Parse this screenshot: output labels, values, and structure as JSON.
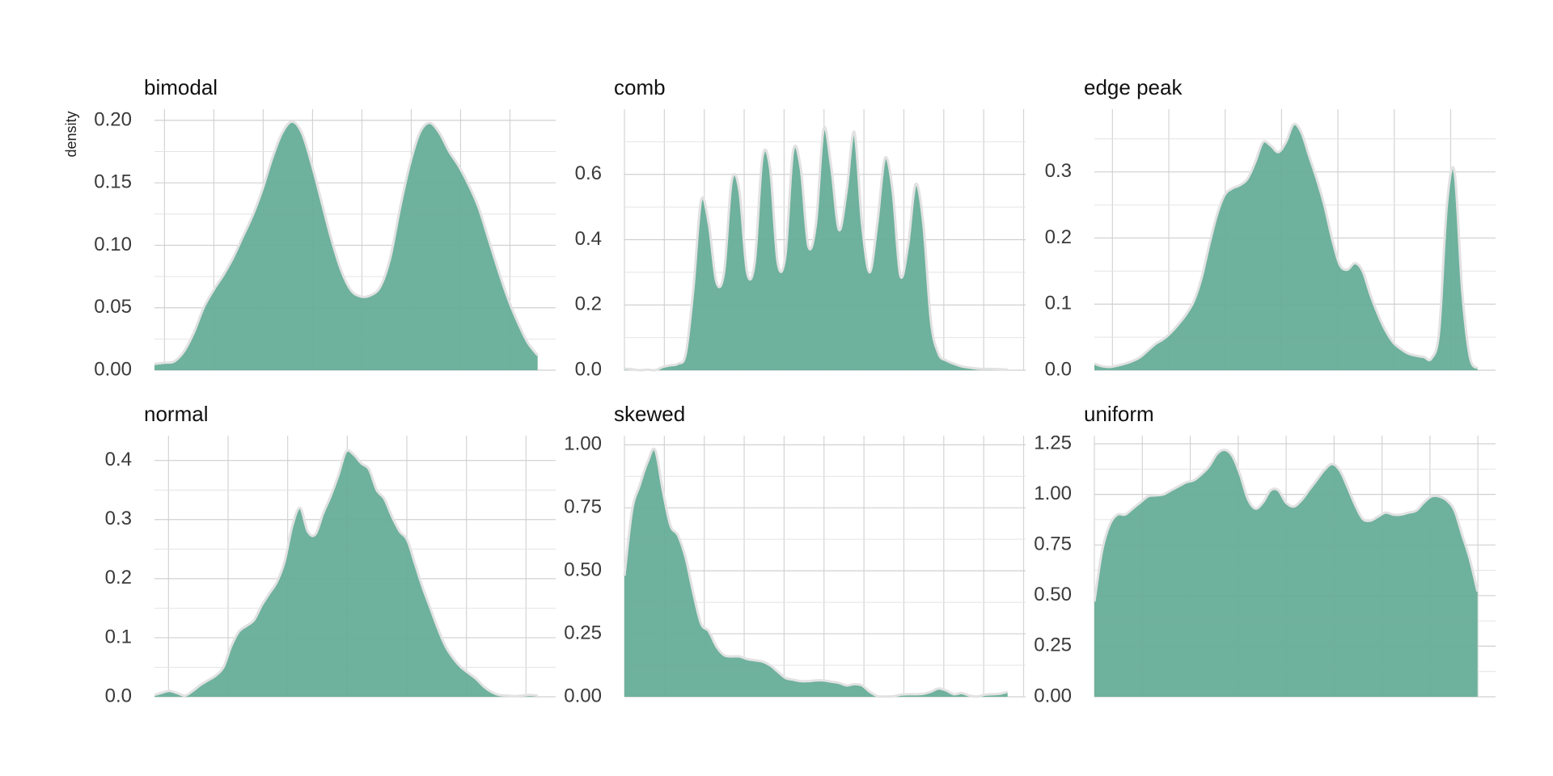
{
  "chart_data": [
    {
      "type": "area",
      "title": "bimodal",
      "ylabel": "density",
      "color": "#66ad98",
      "grid": true,
      "ylim": [
        0,
        0.209
      ],
      "yticks": [
        {
          "value": 0,
          "label": "0.00"
        },
        {
          "value": 0.05,
          "label": "0.05"
        },
        {
          "value": 0.1,
          "label": "0.10"
        },
        {
          "value": 0.15,
          "label": "0.15"
        },
        {
          "value": 0.2,
          "label": "0.20"
        }
      ],
      "values": [
        0.005,
        0.006,
        0.007,
        0.015,
        0.03,
        0.05,
        0.064,
        0.076,
        0.09,
        0.107,
        0.124,
        0.145,
        0.17,
        0.19,
        0.199,
        0.19,
        0.165,
        0.135,
        0.105,
        0.08,
        0.064,
        0.059,
        0.06,
        0.067,
        0.09,
        0.13,
        0.165,
        0.19,
        0.198,
        0.19,
        0.175,
        0.163,
        0.148,
        0.13,
        0.105,
        0.08,
        0.057,
        0.038,
        0.022,
        0.012
      ]
    },
    {
      "type": "area",
      "title": "comb",
      "color": "#66ad98",
      "grid": true,
      "ylim": [
        0,
        0.8
      ],
      "yticks": [
        {
          "value": 0,
          "label": "0.0"
        },
        0.2,
        0.4,
        0.6
      ],
      "values": [
        0.005,
        0.003,
        0.0,
        0.002,
        0.0,
        0.01,
        0.015,
        0.02,
        0.05,
        0.25,
        0.52,
        0.45,
        0.27,
        0.3,
        0.58,
        0.55,
        0.3,
        0.33,
        0.65,
        0.62,
        0.33,
        0.35,
        0.67,
        0.62,
        0.38,
        0.45,
        0.74,
        0.62,
        0.43,
        0.55,
        0.73,
        0.45,
        0.3,
        0.45,
        0.65,
        0.55,
        0.29,
        0.38,
        0.57,
        0.45,
        0.15,
        0.05,
        0.03,
        0.02,
        0.012,
        0.008,
        0.005,
        0.004,
        0.004,
        0.003,
        0.002
      ]
    },
    {
      "type": "area",
      "title": "edge peak",
      "color": "#66ad98",
      "grid": true,
      "ylim": [
        0,
        0.395
      ],
      "yticks": [
        {
          "value": 0,
          "label": "0.0"
        },
        0.1,
        0.2,
        0.3
      ],
      "values": [
        0.01,
        0.006,
        0.005,
        0.007,
        0.01,
        0.014,
        0.02,
        0.03,
        0.04,
        0.047,
        0.057,
        0.07,
        0.085,
        0.105,
        0.14,
        0.19,
        0.235,
        0.265,
        0.275,
        0.28,
        0.29,
        0.315,
        0.345,
        0.34,
        0.33,
        0.345,
        0.372,
        0.36,
        0.325,
        0.29,
        0.25,
        0.2,
        0.16,
        0.152,
        0.162,
        0.15,
        0.115,
        0.085,
        0.06,
        0.042,
        0.032,
        0.025,
        0.022,
        0.02,
        0.018,
        0.06,
        0.25,
        0.3,
        0.12,
        0.02,
        0.003
      ]
    },
    {
      "type": "area",
      "title": "normal",
      "color": "#66ad98",
      "grid": true,
      "ylim": [
        0,
        0.442
      ],
      "yticks": [
        {
          "value": 0,
          "label": "0.0"
        },
        0.1,
        0.2,
        0.3,
        0.4
      ],
      "values": [
        0.003,
        0.007,
        0.01,
        0.006,
        0.002,
        0.01,
        0.02,
        0.028,
        0.036,
        0.05,
        0.085,
        0.11,
        0.12,
        0.13,
        0.155,
        0.175,
        0.195,
        0.23,
        0.29,
        0.32,
        0.28,
        0.275,
        0.31,
        0.34,
        0.375,
        0.415,
        0.41,
        0.395,
        0.385,
        0.35,
        0.335,
        0.305,
        0.28,
        0.265,
        0.225,
        0.185,
        0.15,
        0.115,
        0.085,
        0.065,
        0.05,
        0.04,
        0.03,
        0.017,
        0.008,
        0.003,
        0.002,
        0.001,
        0.002,
        0.003,
        0.002
      ]
    },
    {
      "type": "area",
      "title": "skewed",
      "color": "#66ad98",
      "grid": true,
      "ylim": [
        0,
        1.036
      ],
      "yticks": [
        {
          "value": 0,
          "label": "0.00"
        },
        0.25,
        {
          "value": 0.5,
          "label": "0.50"
        },
        0.75,
        {
          "value": 1,
          "label": "1.00"
        }
      ],
      "values": [
        0.48,
        0.74,
        0.84,
        0.93,
        0.98,
        0.82,
        0.68,
        0.64,
        0.55,
        0.41,
        0.29,
        0.26,
        0.2,
        0.165,
        0.16,
        0.16,
        0.15,
        0.145,
        0.14,
        0.125,
        0.1,
        0.075,
        0.068,
        0.062,
        0.062,
        0.065,
        0.065,
        0.06,
        0.055,
        0.045,
        0.05,
        0.045,
        0.02,
        0.003,
        0.001,
        0.002,
        0.008,
        0.01,
        0.01,
        0.012,
        0.02,
        0.033,
        0.025,
        0.01,
        0.015,
        0.005,
        0.001,
        0.008,
        0.01,
        0.012,
        0.02
      ]
    },
    {
      "type": "area",
      "title": "uniform",
      "color": "#66ad98",
      "grid": true,
      "ylim": [
        0,
        1.29
      ],
      "yticks": [
        {
          "value": 0,
          "label": "0.00"
        },
        0.25,
        {
          "value": 0.5,
          "label": "0.50"
        },
        0.75,
        {
          "value": 1,
          "label": "1.00"
        },
        1.25
      ],
      "values": [
        0.47,
        0.72,
        0.85,
        0.9,
        0.9,
        0.93,
        0.96,
        0.99,
        0.995,
        1.0,
        1.02,
        1.04,
        1.06,
        1.07,
        1.1,
        1.14,
        1.2,
        1.22,
        1.19,
        1.1,
        0.98,
        0.93,
        0.96,
        1.02,
        1.02,
        0.96,
        0.94,
        0.97,
        1.02,
        1.07,
        1.12,
        1.15,
        1.12,
        1.04,
        0.95,
        0.88,
        0.87,
        0.89,
        0.91,
        0.9,
        0.9,
        0.91,
        0.92,
        0.96,
        0.99,
        0.99,
        0.97,
        0.92,
        0.8,
        0.68,
        0.52
      ]
    }
  ]
}
